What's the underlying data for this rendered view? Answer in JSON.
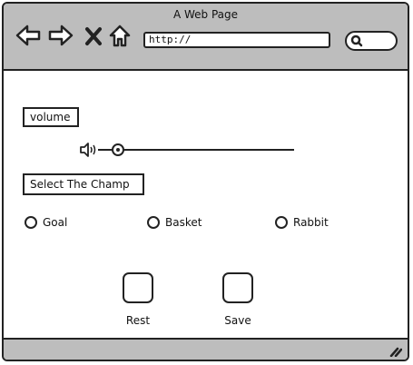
{
  "window": {
    "title": "A Web Page"
  },
  "toolbar": {
    "back_icon": "back-arrow-icon",
    "forward_icon": "forward-arrow-icon",
    "stop_icon": "close-x-icon",
    "home_icon": "home-icon",
    "url": "http://",
    "search_icon": "search-icon"
  },
  "content": {
    "volume_label": "volume",
    "volume_icon": "speaker-icon",
    "volume_level": 0.1,
    "champ_label": "Select The Champ",
    "options": [
      "Goal",
      "Basket",
      "Rabbit"
    ],
    "buttons": {
      "rest": "Rest",
      "save": "Save"
    }
  },
  "statusbar": {
    "resize_icon": "resize-grip-icon"
  }
}
